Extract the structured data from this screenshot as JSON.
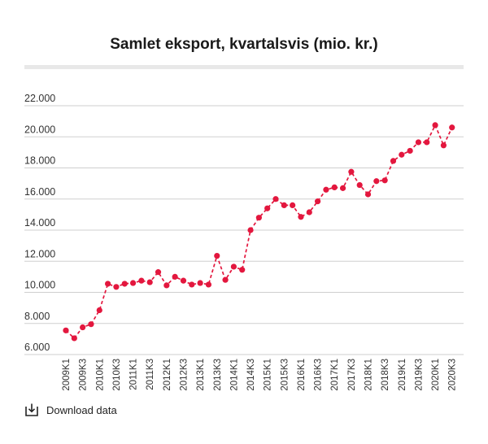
{
  "chart_data": {
    "type": "line",
    "title": "Samlet eksport, kvartalsvis (mio. kr.)",
    "xlabel": "",
    "ylabel": "",
    "ylim": [
      6000,
      22000
    ],
    "yticks": [
      6000,
      8000,
      10000,
      12000,
      14000,
      16000,
      18000,
      20000,
      22000
    ],
    "ytick_labels": [
      "6.000",
      "8.000",
      "10.000",
      "12.000",
      "14.000",
      "16.000",
      "18.000",
      "20.000",
      "22.000"
    ],
    "grid": true,
    "x": [
      "2009K1",
      "2009K2",
      "2009K3",
      "2009K4",
      "2010K1",
      "2010K2",
      "2010K3",
      "2010K4",
      "2011K1",
      "2011K2",
      "2011K3",
      "2011K4",
      "2012K1",
      "2012K2",
      "2012K3",
      "2012K4",
      "2013K1",
      "2013K2",
      "2013K3",
      "2013K4",
      "2014K1",
      "2014K2",
      "2014K3",
      "2014K4",
      "2015K1",
      "2015K2",
      "2015K3",
      "2015K4",
      "2016K1",
      "2016K2",
      "2016K3",
      "2016K4",
      "2017K1",
      "2017K2",
      "2017K3",
      "2017K4",
      "2018K1",
      "2018K2",
      "2018K3",
      "2018K4",
      "2019K1",
      "2019K2",
      "2019K3",
      "2019K4",
      "2020K1",
      "2020K2",
      "2020K3"
    ],
    "x_tick_labels": [
      "2009K1",
      "2009K3",
      "2010K1",
      "2010K3",
      "2011K1",
      "2011K3",
      "2012K1",
      "2012K3",
      "2013K1",
      "2013K3",
      "2014K1",
      "2014K3",
      "2015K1",
      "2015K3",
      "2016K1",
      "2016K3",
      "2017K1",
      "2017K3",
      "2018K1",
      "2018K3",
      "2019K1",
      "2019K3",
      "2020K1",
      "2020K3"
    ],
    "series": [
      {
        "values": [
          7550,
          7050,
          7750,
          7950,
          8850,
          10550,
          10350,
          10550,
          10600,
          10750,
          10650,
          11300,
          10450,
          11000,
          10750,
          10500,
          10600,
          10500,
          12350,
          10800,
          11650,
          11450,
          14000,
          14800,
          15400,
          16000,
          15600,
          15600,
          14850,
          15150,
          15850,
          16600,
          16750,
          16700,
          17750,
          16900,
          16300,
          17150,
          17200,
          18450,
          18850,
          19100,
          19650,
          19650,
          20750,
          19450,
          20600
        ],
        "color": "#e3173e"
      }
    ]
  },
  "footer": {
    "download_label": "Download data",
    "icon": "download-icon"
  }
}
